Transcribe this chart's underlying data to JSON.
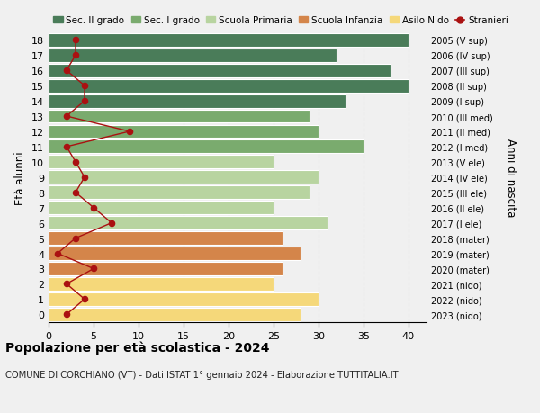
{
  "ages": [
    18,
    17,
    16,
    15,
    14,
    13,
    12,
    11,
    10,
    9,
    8,
    7,
    6,
    5,
    4,
    3,
    2,
    1,
    0
  ],
  "right_labels": [
    "2005 (V sup)",
    "2006 (IV sup)",
    "2007 (III sup)",
    "2008 (II sup)",
    "2009 (I sup)",
    "2010 (III med)",
    "2011 (II med)",
    "2012 (I med)",
    "2013 (V ele)",
    "2014 (IV ele)",
    "2015 (III ele)",
    "2016 (II ele)",
    "2017 (I ele)",
    "2018 (mater)",
    "2019 (mater)",
    "2020 (mater)",
    "2021 (nido)",
    "2022 (nido)",
    "2023 (nido)"
  ],
  "bar_values": [
    40,
    32,
    38,
    40,
    33,
    29,
    30,
    35,
    25,
    30,
    29,
    25,
    31,
    26,
    28,
    26,
    25,
    30,
    28
  ],
  "bar_colors": [
    "#4a7c59",
    "#4a7c59",
    "#4a7c59",
    "#4a7c59",
    "#4a7c59",
    "#7aab6e",
    "#7aab6e",
    "#7aab6e",
    "#b8d4a0",
    "#b8d4a0",
    "#b8d4a0",
    "#b8d4a0",
    "#b8d4a0",
    "#d4854a",
    "#d4854a",
    "#d4854a",
    "#f5d87a",
    "#f5d87a",
    "#f5d87a"
  ],
  "stranieri_values": [
    3,
    3,
    2,
    4,
    4,
    2,
    9,
    2,
    3,
    4,
    3,
    5,
    7,
    3,
    1,
    5,
    2,
    4,
    2
  ],
  "title": "Popolazione per età scolastica - 2024",
  "subtitle": "COMUNE DI CORCHIANO (VT) - Dati ISTAT 1° gennaio 2024 - Elaborazione TUTTITALIA.IT",
  "ylabel": "Età alunni",
  "right_ylabel": "Anni di nascita",
  "xlim": [
    0,
    42
  ],
  "xticks": [
    0,
    5,
    10,
    15,
    20,
    25,
    30,
    35,
    40
  ],
  "legend_labels": [
    "Sec. II grado",
    "Sec. I grado",
    "Scuola Primaria",
    "Scuola Infanzia",
    "Asilo Nido",
    "Stranieri"
  ],
  "legend_colors": [
    "#4a7c59",
    "#7aab6e",
    "#b8d4a0",
    "#d4854a",
    "#f5d87a",
    "#aa1111"
  ],
  "stranieri_color": "#aa1111",
  "bg_color": "#f0f0f0",
  "grid_color": "#cccccc"
}
